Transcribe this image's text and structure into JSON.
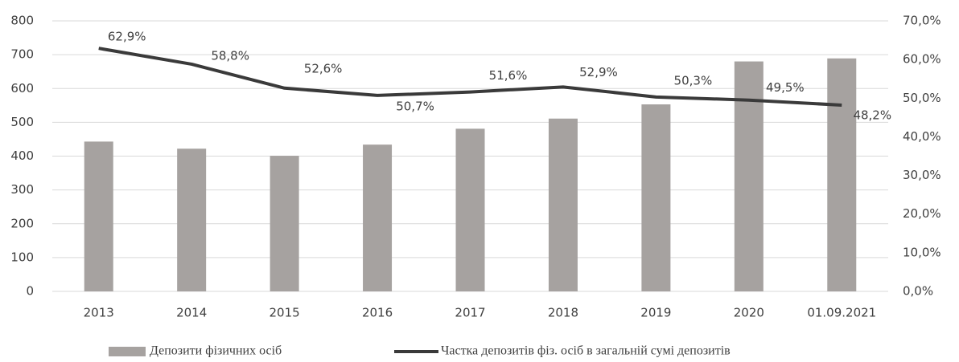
{
  "chart_data": {
    "type": "bar_line",
    "categories": [
      "2013",
      "2014",
      "2015",
      "2016",
      "2017",
      "2018",
      "2019",
      "2020",
      "01.09.2021"
    ],
    "series": [
      {
        "name": "Депозити фізичних осіб",
        "color": "#a6a2a0",
        "type": "bar",
        "values": [
          443,
          422,
          401,
          434,
          481,
          511,
          553,
          680,
          689
        ]
      },
      {
        "name": "Частка депозитів фіз. осіб в загальній сумі депозитів",
        "color": "#3a3a3a",
        "type": "line",
        "axis": "y2",
        "values": [
          62.9,
          58.8,
          52.6,
          50.7,
          51.6,
          52.9,
          50.3,
          49.5,
          48.2
        ],
        "value_labels": [
          "62,9%",
          "58,8%",
          "52,6%",
          "50,7%",
          "51,6%",
          "52,9%",
          "50,3%",
          "49,5%",
          "48,2%"
        ]
      }
    ],
    "ylim": [
      0,
      800
    ],
    "yticks": [
      0,
      100,
      200,
      300,
      400,
      500,
      600,
      700,
      800
    ],
    "y2lim": [
      0,
      70
    ],
    "y2ticks": [
      {
        "value": 0,
        "label": "0,0%"
      },
      {
        "value": 10,
        "label": "10,0%"
      },
      {
        "value": 20,
        "label": "20,0%"
      },
      {
        "value": 30,
        "label": "30,0%"
      },
      {
        "value": 40,
        "label": "40,0%"
      },
      {
        "value": 50,
        "label": "50,0%"
      },
      {
        "value": 60,
        "label": "60,0%"
      },
      {
        "value": 70,
        "label": "70,0%"
      }
    ],
    "grid": true,
    "legend": "bottom"
  }
}
